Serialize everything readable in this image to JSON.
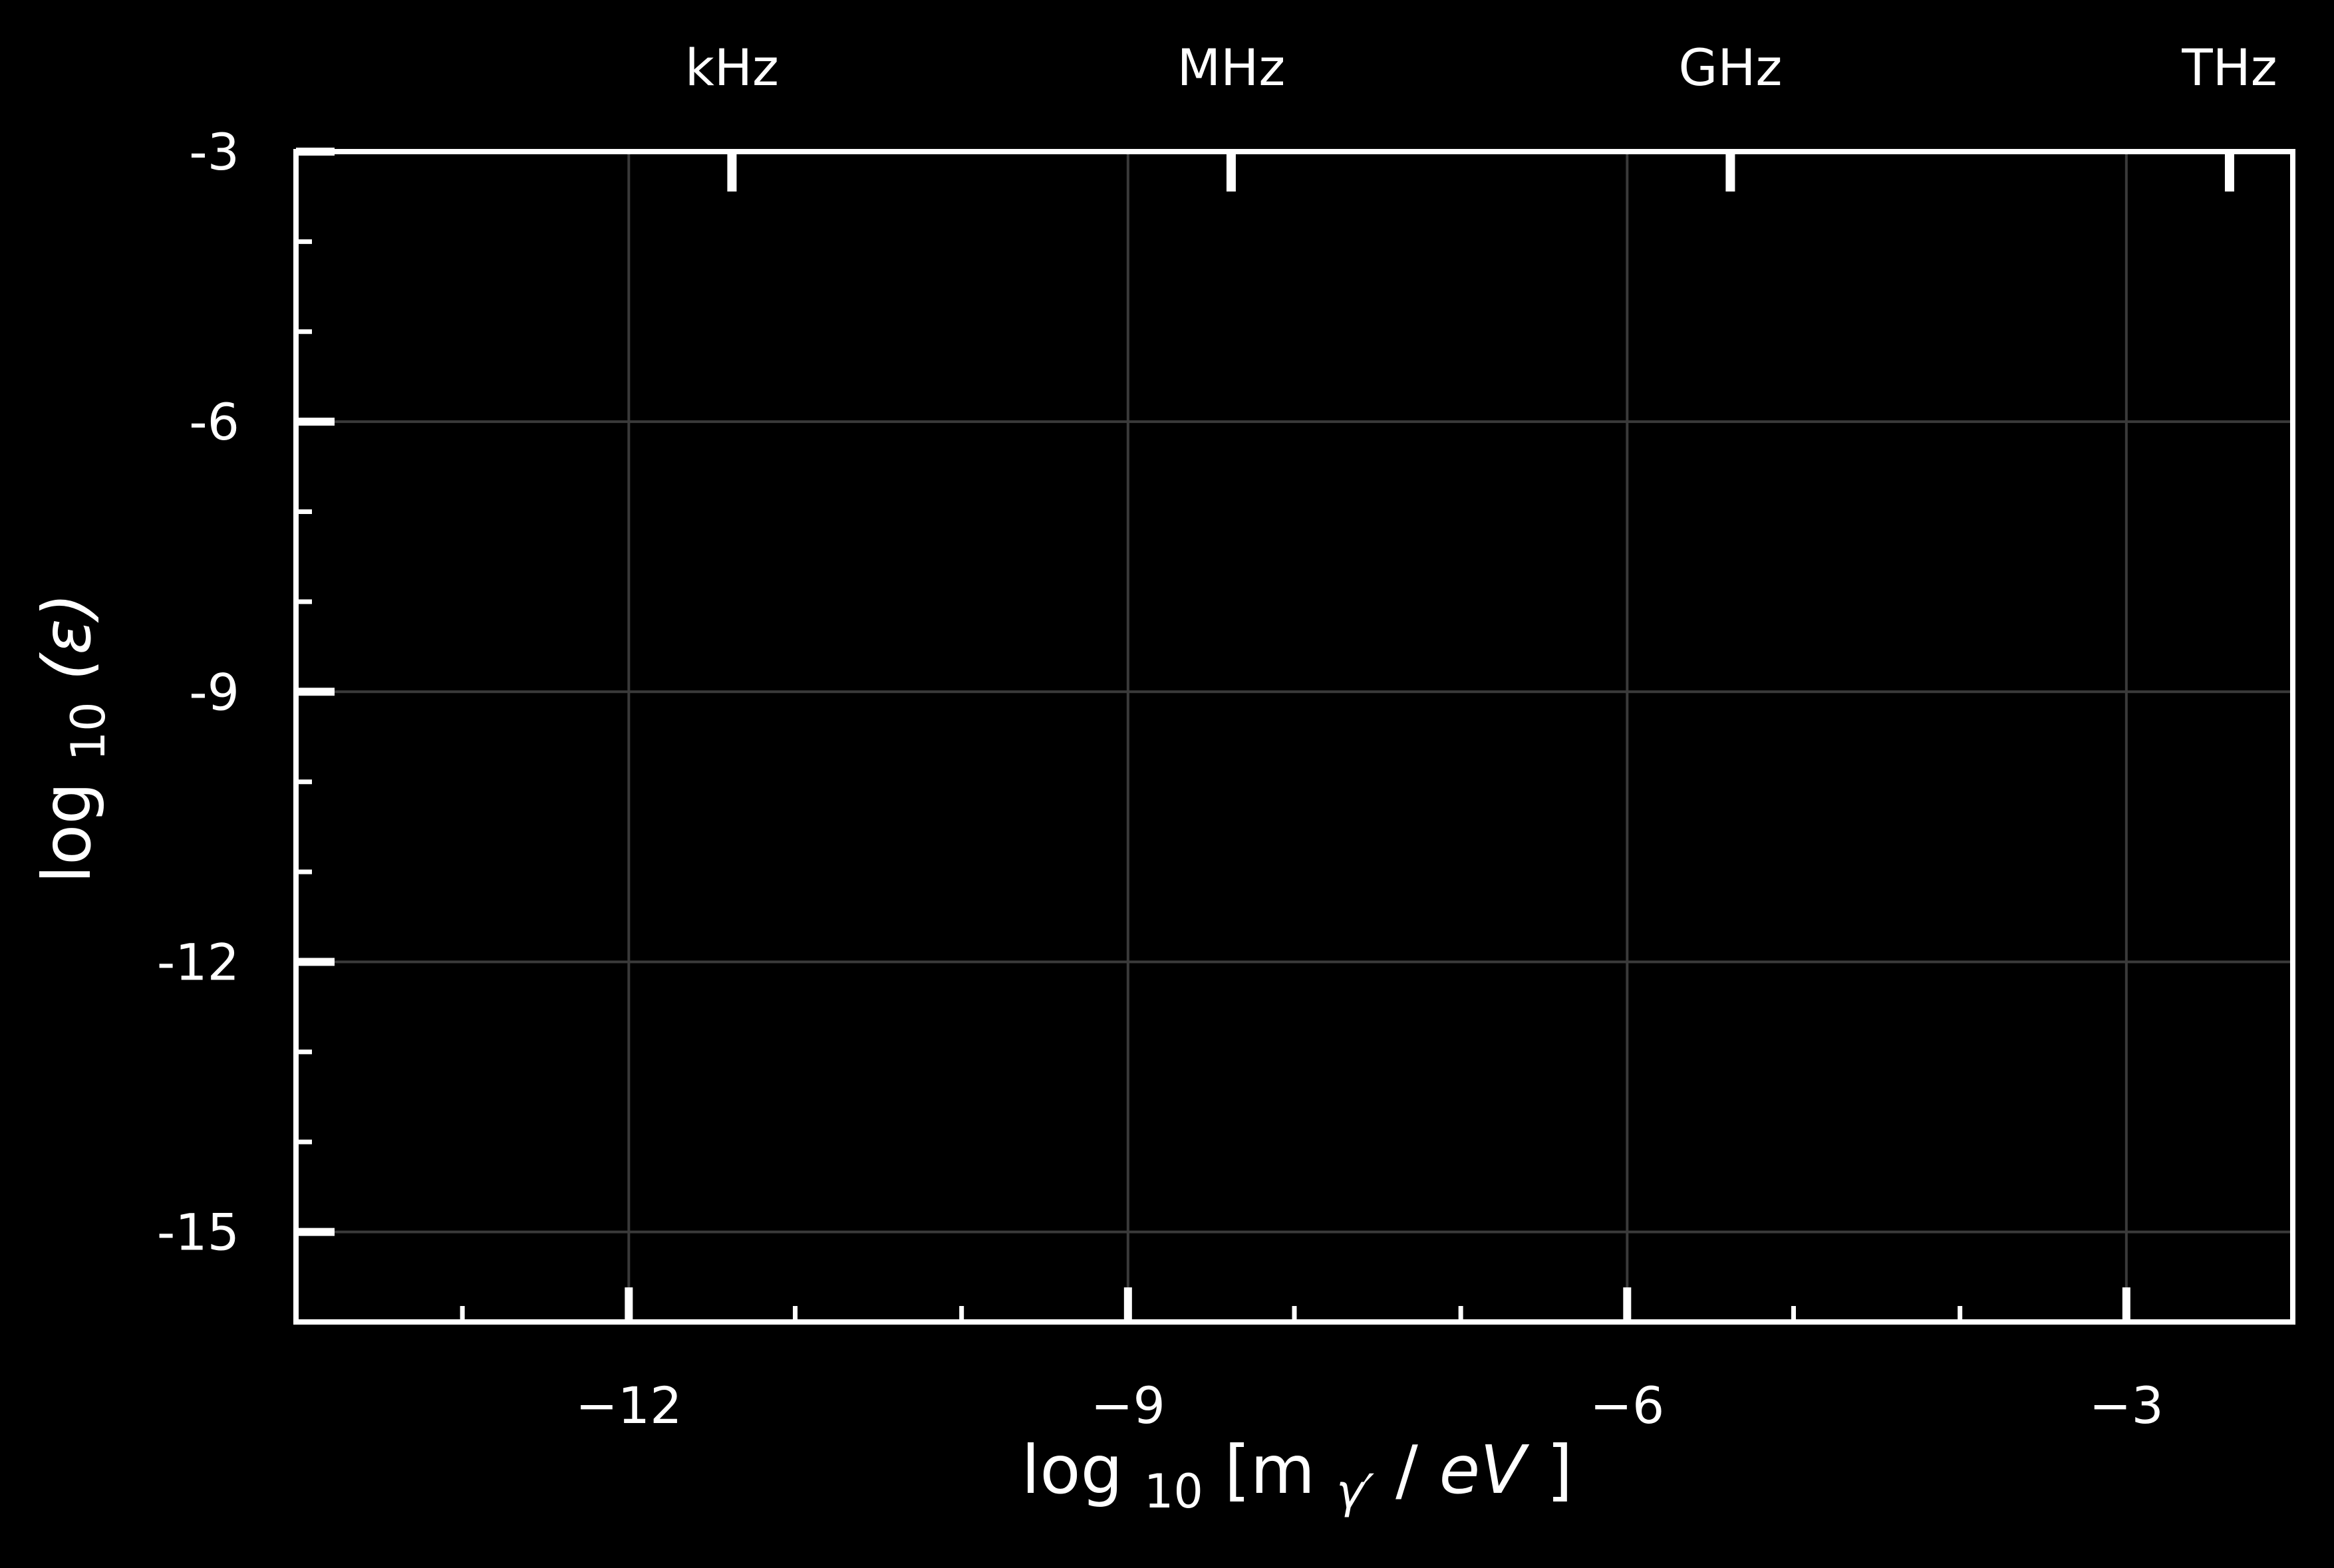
{
  "chart_data": {
    "type": "scatter",
    "title": "",
    "xlabel": {
      "prefix": "log",
      "sub": "10",
      "open": "[m",
      "sub2": "γ′",
      "slash": "/",
      "unit": "eV",
      "close": "]"
    },
    "ylabel": {
      "prefix": "log",
      "sub": "10",
      "body": "(ε)"
    },
    "xlim": [
      -14,
      -2
    ],
    "ylim": [
      -16,
      -3
    ],
    "grid": true,
    "x_ticks": [
      -12,
      -9,
      -6,
      -3
    ],
    "x_tick_labels": [
      "−12",
      "−9",
      "−6",
      "−3"
    ],
    "x_minor_step": 1,
    "y_ticks": [
      -3,
      -6,
      -9,
      -12,
      -15
    ],
    "y_tick_labels": [
      "-3",
      "-6",
      "-9",
      "-12",
      "-15"
    ],
    "y_minor_step": 1,
    "top_axis": {
      "ticks": [
        -11.38,
        -8.38,
        -5.38,
        -2.38
      ],
      "labels": [
        "kHz",
        "MHz",
        "GHz",
        "THz"
      ]
    },
    "series": [],
    "colors": {
      "background": "#000000",
      "axis": "#ffffff",
      "grid": "#3a3a3a",
      "text": "#ffffff"
    }
  }
}
